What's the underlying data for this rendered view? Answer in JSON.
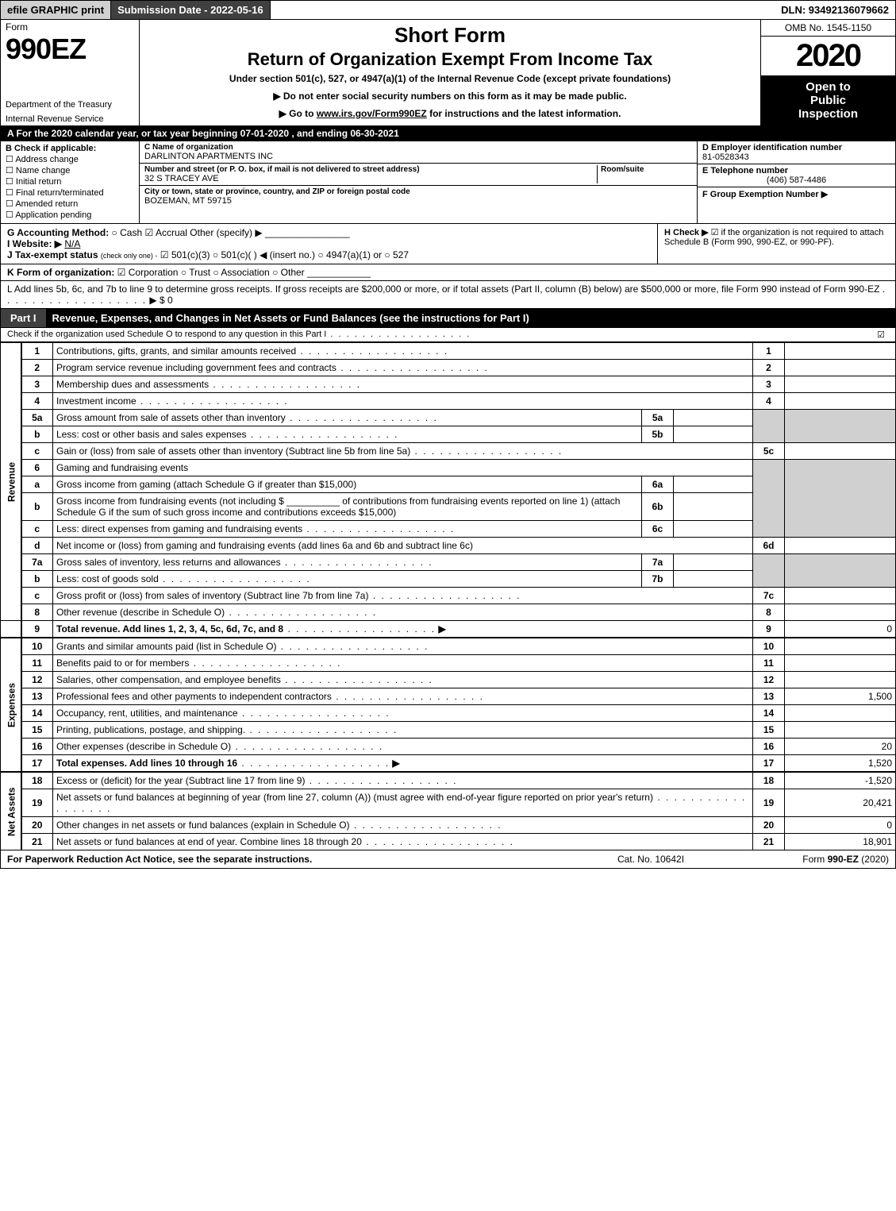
{
  "topbar": {
    "efile": "efile GRAPHIC print",
    "submission": "Submission Date - 2022-05-16",
    "dln": "DLN: 93492136079662"
  },
  "header": {
    "form_word": "Form",
    "form_number": "990EZ",
    "dept1": "Department of the Treasury",
    "dept2": "Internal Revenue Service",
    "short_form": "Short Form",
    "return_title": "Return of Organization Exempt From Income Tax",
    "under": "Under section 501(c), 527, or 4947(a)(1) of the Internal Revenue Code (except private foundations)",
    "no_ssn": "▶ Do not enter social security numbers on this form as it may be made public.",
    "goto_pre": "▶ Go to ",
    "goto_link": "www.irs.gov/Form990EZ",
    "goto_post": " for instructions and the latest information.",
    "omb": "OMB No. 1545-1150",
    "year": "2020",
    "inspect1": "Open to",
    "inspect2": "Public",
    "inspect3": "Inspection"
  },
  "tax_year_bar": "A For the 2020 calendar year, or tax year beginning 07-01-2020 , and ending 06-30-2021",
  "section_b": {
    "header": "B  Check if applicable:",
    "items": [
      "Address change",
      "Name change",
      "Initial return",
      "Final return/terminated",
      "Amended return",
      "Application pending"
    ]
  },
  "section_c": {
    "name_lbl": "C Name of organization",
    "name": "DARLINTON APARTMENTS INC",
    "street_lbl": "Number and street (or P. O. box, if mail is not delivered to street address)",
    "room_lbl": "Room/suite",
    "street": "32 S TRACEY AVE",
    "city_lbl": "City or town, state or province, country, and ZIP or foreign postal code",
    "city": "BOZEMAN, MT  59715"
  },
  "section_d": {
    "ein_lbl": "D Employer identification number",
    "ein": "81-0528343",
    "phone_lbl": "E Telephone number",
    "phone": "(406) 587-4486",
    "group_lbl": "F Group Exemption Number  ▶"
  },
  "row_g": {
    "label": "G Accounting Method:",
    "cash": "Cash",
    "accrual": "Accrual",
    "other": "Other (specify) ▶",
    "h_label": "H  Check ▶",
    "h_text": " if the organization is not required to attach Schedule B (Form 990, 990-EZ, or 990-PF)."
  },
  "row_i": {
    "label": "I Website: ▶",
    "value": "N/A"
  },
  "row_j": {
    "label": "J Tax-exempt status",
    "sub": "(check only one) -",
    "opt1": "501(c)(3)",
    "opt2": "501(c)(  ) ◀ (insert no.)",
    "opt3": "4947(a)(1) or",
    "opt4": "527"
  },
  "row_k": {
    "label": "K Form of organization:",
    "corp": "Corporation",
    "trust": "Trust",
    "assoc": "Association",
    "other": "Other"
  },
  "row_l": {
    "text": "L Add lines 5b, 6c, and 7b to line 9 to determine gross receipts. If gross receipts are $200,000 or more, or if total assets (Part II, column (B) below) are $500,000 or more, file Form 990 instead of Form 990-EZ",
    "amt": "▶ $ 0"
  },
  "part1": {
    "label": "Part I",
    "title": "Revenue, Expenses, and Changes in Net Assets or Fund Balances (see the instructions for Part I)",
    "sub": "Check if the organization used Schedule O to respond to any question in this Part I"
  },
  "sidebars": {
    "revenue": "Revenue",
    "expenses": "Expenses",
    "netassets": "Net Assets"
  },
  "lines": {
    "l1": {
      "n": "1",
      "d": "Contributions, gifts, grants, and similar amounts received",
      "rn": "1",
      "amt": ""
    },
    "l2": {
      "n": "2",
      "d": "Program service revenue including government fees and contracts",
      "rn": "2",
      "amt": ""
    },
    "l3": {
      "n": "3",
      "d": "Membership dues and assessments",
      "rn": "3",
      "amt": ""
    },
    "l4": {
      "n": "4",
      "d": "Investment income",
      "rn": "4",
      "amt": ""
    },
    "l5a": {
      "n": "5a",
      "d": "Gross amount from sale of assets other than inventory",
      "sn": "5a"
    },
    "l5b": {
      "n": "b",
      "d": "Less: cost or other basis and sales expenses",
      "sn": "5b"
    },
    "l5c": {
      "n": "c",
      "d": "Gain or (loss) from sale of assets other than inventory (Subtract line 5b from line 5a)",
      "rn": "5c",
      "amt": ""
    },
    "l6": {
      "n": "6",
      "d": "Gaming and fundraising events"
    },
    "l6a": {
      "n": "a",
      "d": "Gross income from gaming (attach Schedule G if greater than $15,000)",
      "sn": "6a"
    },
    "l6b": {
      "n": "b",
      "d1": "Gross income from fundraising events (not including $",
      "d2": "of contributions from fundraising events reported on line 1) (attach Schedule G if the sum of such gross income and contributions exceeds $15,000)",
      "sn": "6b"
    },
    "l6c": {
      "n": "c",
      "d": "Less: direct expenses from gaming and fundraising events",
      "sn": "6c"
    },
    "l6d": {
      "n": "d",
      "d": "Net income or (loss) from gaming and fundraising events (add lines 6a and 6b and subtract line 6c)",
      "rn": "6d",
      "amt": ""
    },
    "l7a": {
      "n": "7a",
      "d": "Gross sales of inventory, less returns and allowances",
      "sn": "7a"
    },
    "l7b": {
      "n": "b",
      "d": "Less: cost of goods sold",
      "sn": "7b"
    },
    "l7c": {
      "n": "c",
      "d": "Gross profit or (loss) from sales of inventory (Subtract line 7b from line 7a)",
      "rn": "7c",
      "amt": ""
    },
    "l8": {
      "n": "8",
      "d": "Other revenue (describe in Schedule O)",
      "rn": "8",
      "amt": ""
    },
    "l9": {
      "n": "9",
      "d": "Total revenue. Add lines 1, 2, 3, 4, 5c, 6d, 7c, and 8",
      "rn": "9",
      "amt": "0"
    },
    "l10": {
      "n": "10",
      "d": "Grants and similar amounts paid (list in Schedule O)",
      "rn": "10",
      "amt": ""
    },
    "l11": {
      "n": "11",
      "d": "Benefits paid to or for members",
      "rn": "11",
      "amt": ""
    },
    "l12": {
      "n": "12",
      "d": "Salaries, other compensation, and employee benefits",
      "rn": "12",
      "amt": ""
    },
    "l13": {
      "n": "13",
      "d": "Professional fees and other payments to independent contractors",
      "rn": "13",
      "amt": "1,500"
    },
    "l14": {
      "n": "14",
      "d": "Occupancy, rent, utilities, and maintenance",
      "rn": "14",
      "amt": ""
    },
    "l15": {
      "n": "15",
      "d": "Printing, publications, postage, and shipping.",
      "rn": "15",
      "amt": ""
    },
    "l16": {
      "n": "16",
      "d": "Other expenses (describe in Schedule O)",
      "rn": "16",
      "amt": "20"
    },
    "l17": {
      "n": "17",
      "d": "Total expenses. Add lines 10 through 16",
      "rn": "17",
      "amt": "1,520"
    },
    "l18": {
      "n": "18",
      "d": "Excess or (deficit) for the year (Subtract line 17 from line 9)",
      "rn": "18",
      "amt": "-1,520"
    },
    "l19": {
      "n": "19",
      "d": "Net assets or fund balances at beginning of year (from line 27, column (A)) (must agree with end-of-year figure reported on prior year's return)",
      "rn": "19",
      "amt": "20,421"
    },
    "l20": {
      "n": "20",
      "d": "Other changes in net assets or fund balances (explain in Schedule O)",
      "rn": "20",
      "amt": "0"
    },
    "l21": {
      "n": "21",
      "d": "Net assets or fund balances at end of year. Combine lines 18 through 20",
      "rn": "21",
      "amt": "18,901"
    }
  },
  "footer": {
    "left": "For Paperwork Reduction Act Notice, see the separate instructions.",
    "center": "Cat. No. 10642I",
    "right_pre": "Form ",
    "right_form": "990-EZ",
    "right_post": " (2020)"
  }
}
